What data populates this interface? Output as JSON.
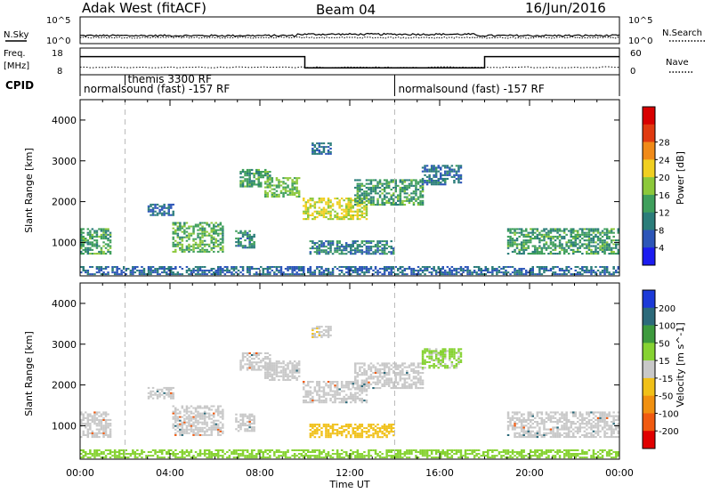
{
  "header": {
    "station": "Adak West (fitACF)",
    "beam": "Beam 04",
    "date": "16/Jun/2016"
  },
  "noise_panel": {
    "left_label": "N.Sky",
    "right_label": "N.Search",
    "left_ticks": [
      "10^5",
      "10^0"
    ],
    "right_ticks": [
      "10^5",
      "10^0"
    ]
  },
  "freq_panel": {
    "left_label_1": "Freq.",
    "left_label_2": "[MHz]",
    "right_label": "Nave",
    "left_ticks": [
      "18",
      "8"
    ],
    "right_ticks": [
      "60",
      "0"
    ],
    "freq_segments": [
      {
        "from": 0.0,
        "to": 10.0,
        "mhz": 14.8
      },
      {
        "from": 10.0,
        "to": 18.0,
        "mhz": 10.6
      },
      {
        "from": 18.0,
        "to": 24.0,
        "mhz": 14.8
      }
    ]
  },
  "cpid_panel": {
    "label": "CPID",
    "entries": [
      {
        "time": 0.0,
        "text": "normalsound (fast) -157 RF"
      },
      {
        "time": 2.0,
        "text": "themis 3300 RF"
      },
      {
        "time": 14.0,
        "text": "normalsound (fast) -157 RF"
      }
    ]
  },
  "chart_data": [
    {
      "type": "heatmap",
      "title": "",
      "ylabel": "Slant Range [km]",
      "xlim": [
        0,
        24
      ],
      "ylim": [
        180,
        4500
      ],
      "y_ticks": [
        "1000",
        "2000",
        "3000",
        "4000"
      ],
      "colorbar": {
        "label": "Power [dB]",
        "tick_labels": [
          "4",
          "8",
          "12",
          "16",
          "20",
          "24",
          "28"
        ],
        "colors": [
          "#1c1cf0",
          "#2d56b8",
          "#2b7d7a",
          "#3f9f5c",
          "#8cc83a",
          "#f0cf20",
          "#f08a18",
          "#e03a10",
          "#d80000"
        ]
      },
      "regions": [
        {
          "t0": 0.0,
          "t1": 1.4,
          "r0": 700,
          "r1": 1350,
          "value": 12
        },
        {
          "t0": 3.0,
          "t1": 4.2,
          "r0": 1650,
          "r1": 1950,
          "value": 6
        },
        {
          "t0": 4.1,
          "t1": 6.4,
          "r0": 750,
          "r1": 1500,
          "value": 13
        },
        {
          "t0": 6.9,
          "t1": 7.8,
          "r0": 850,
          "r1": 1300,
          "value": 9
        },
        {
          "t0": 7.1,
          "t1": 8.5,
          "r0": 2350,
          "r1": 2800,
          "value": 11
        },
        {
          "t0": 8.2,
          "t1": 9.8,
          "r0": 2100,
          "r1": 2600,
          "value": 14
        },
        {
          "t0": 9.9,
          "t1": 12.8,
          "r0": 1550,
          "r1": 2100,
          "value": 18
        },
        {
          "t0": 12.2,
          "t1": 15.3,
          "r0": 1900,
          "r1": 2550,
          "value": 11
        },
        {
          "t0": 15.2,
          "t1": 17.0,
          "r0": 2400,
          "r1": 2900,
          "value": 7
        },
        {
          "t0": 10.2,
          "t1": 14.0,
          "r0": 700,
          "r1": 1050,
          "value": 8
        },
        {
          "t0": 10.3,
          "t1": 11.2,
          "r0": 3150,
          "r1": 3450,
          "value": 6
        },
        {
          "t0": 19.0,
          "t1": 24.0,
          "r0": 700,
          "r1": 1350,
          "value": 11
        },
        {
          "t0": 0.0,
          "t1": 24.0,
          "r0": 200,
          "r1": 420,
          "value": 6
        }
      ]
    },
    {
      "type": "heatmap",
      "title": "",
      "ylabel": "Slant Range [km]",
      "xlabel": "Time UT",
      "xlim": [
        0,
        24
      ],
      "ylim": [
        180,
        4500
      ],
      "x_ticks": [
        "00:00",
        "04:00",
        "08:00",
        "12:00",
        "16:00",
        "20:00",
        "00:00"
      ],
      "y_ticks": [
        "1000",
        "2000",
        "3000",
        "4000"
      ],
      "colorbar": {
        "label": "Velocity [m s^-1]",
        "tick_labels": [
          "200",
          "100",
          "50",
          "15",
          "-15",
          "-50",
          "-100",
          "-200"
        ],
        "colors": [
          "#1c3ad8",
          "#2c6a7a",
          "#3d9a3d",
          "#86d232",
          "#c8c8c8",
          "#f0c018",
          "#f09010",
          "#f05a10",
          "#e00000"
        ]
      },
      "regions": [
        {
          "t0": 0.0,
          "t1": 1.4,
          "r0": 700,
          "r1": 1350,
          "value": 0
        },
        {
          "t0": 3.0,
          "t1": 4.2,
          "r0": 1650,
          "r1": 1950,
          "value": 0
        },
        {
          "t0": 4.1,
          "t1": 6.4,
          "r0": 750,
          "r1": 1500,
          "value": 0
        },
        {
          "t0": 6.9,
          "t1": 7.8,
          "r0": 850,
          "r1": 1300,
          "value": 0
        },
        {
          "t0": 7.1,
          "t1": 8.5,
          "r0": 2350,
          "r1": 2800,
          "value": 0
        },
        {
          "t0": 8.2,
          "t1": 9.8,
          "r0": 2100,
          "r1": 2600,
          "value": 0
        },
        {
          "t0": 9.9,
          "t1": 12.8,
          "r0": 1550,
          "r1": 2100,
          "value": 0
        },
        {
          "t0": 12.2,
          "t1": 15.3,
          "r0": 1900,
          "r1": 2550,
          "value": 0
        },
        {
          "t0": 15.2,
          "t1": 17.0,
          "r0": 2400,
          "r1": 2900,
          "value": 20
        },
        {
          "t0": 10.2,
          "t1": 14.0,
          "r0": 700,
          "r1": 1050,
          "value": -40
        },
        {
          "t0": 10.3,
          "t1": 11.2,
          "r0": 3150,
          "r1": 3450,
          "value": -10
        },
        {
          "t0": 19.0,
          "t1": 24.0,
          "r0": 700,
          "r1": 1350,
          "value": 0
        },
        {
          "t0": 0.0,
          "t1": 24.0,
          "r0": 200,
          "r1": 420,
          "value": 25
        }
      ]
    }
  ]
}
